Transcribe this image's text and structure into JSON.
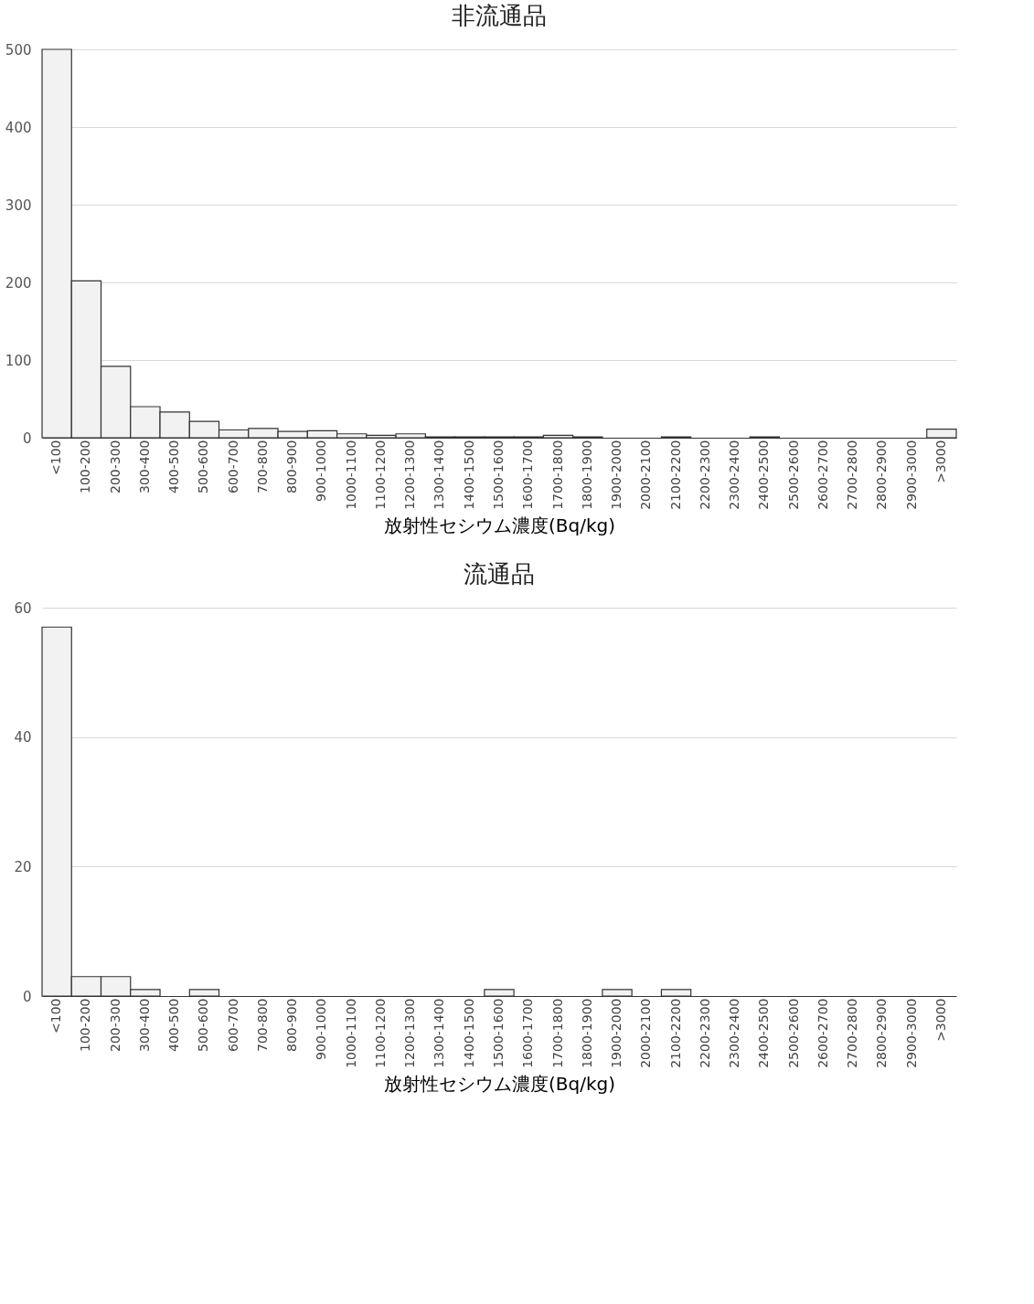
{
  "chart_data": [
    {
      "type": "bar",
      "title": "非流通品",
      "xlabel": "放射性セシウム濃度(Bq/kg)",
      "categories": [
        "<100",
        "100-200",
        "200-300",
        "300-400",
        "400-500",
        "500-600",
        "600-700",
        "700-800",
        "800-900",
        "900-1000",
        "1000-1100",
        "1100-1200",
        "1200-1300",
        "1300-1400",
        "1400-1500",
        "1500-1600",
        "1600-1700",
        "1700-1800",
        "1800-1900",
        "1900-2000",
        "2000-2100",
        "2100-2200",
        "2200-2300",
        "2300-2400",
        "2400-2500",
        "2500-2600",
        "2600-2700",
        "2700-2800",
        "2800-2900",
        "2900-3000",
        ">3000"
      ],
      "values": [
        500,
        202,
        92,
        40,
        33,
        21,
        10,
        12,
        8,
        9,
        5,
        3,
        5,
        1,
        1,
        1,
        1,
        3,
        1,
        0,
        0,
        1,
        0,
        0,
        1,
        0,
        0,
        0,
        0,
        0,
        11
      ],
      "color": "#f2f2f2",
      "ylim": [
        0,
        500
      ],
      "yticks": [
        0,
        100,
        200,
        300,
        400,
        500
      ],
      "grid": "y"
    },
    {
      "type": "bar",
      "title": "流通品",
      "xlabel": "放射性セシウム濃度(Bq/kg)",
      "categories": [
        "<100",
        "100-200",
        "200-300",
        "300-400",
        "400-500",
        "500-600",
        "600-700",
        "700-800",
        "800-900",
        "900-1000",
        "1000-1100",
        "1100-1200",
        "1200-1300",
        "1300-1400",
        "1400-1500",
        "1500-1600",
        "1600-1700",
        "1700-1800",
        "1800-1900",
        "1900-2000",
        "2000-2100",
        "2100-2200",
        "2200-2300",
        "2300-2400",
        "2400-2500",
        "2500-2600",
        "2600-2700",
        "2700-2800",
        "2800-2900",
        "2900-3000",
        ">3000"
      ],
      "values": [
        57,
        3,
        3,
        1,
        0,
        1,
        0,
        0,
        0,
        0,
        0,
        0,
        0,
        0,
        0,
        1,
        0,
        0,
        0,
        1,
        0,
        1,
        0,
        0,
        0,
        0,
        0,
        0,
        0,
        0,
        0
      ],
      "color": "#f2f2f2",
      "ylim": [
        0,
        60
      ],
      "yticks": [
        0,
        20,
        40,
        60
      ],
      "grid": "y"
    }
  ]
}
